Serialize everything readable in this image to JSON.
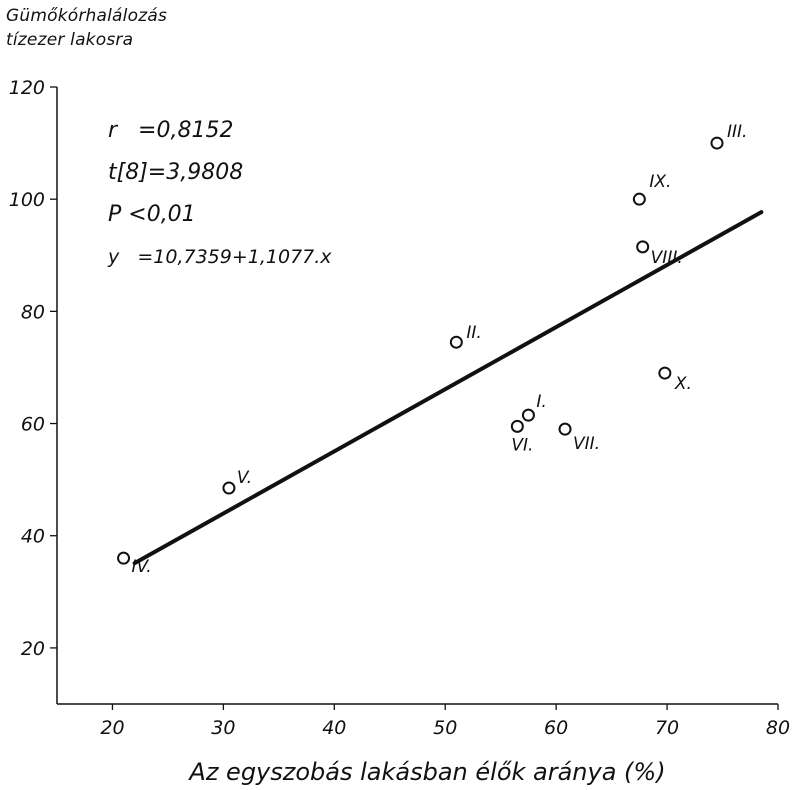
{
  "chart_data": {
    "type": "scatter",
    "ylabel_line1": "Gümőkórhalálozás",
    "ylabel_line2": "tízezer lakosra",
    "xlabel": "Az egyszobás lakásban élők aránya (%)",
    "xlim": [
      15,
      80
    ],
    "ylim": [
      10,
      120
    ],
    "xticks": [
      20,
      30,
      40,
      50,
      60,
      70,
      80
    ],
    "yticks": [
      20,
      40,
      60,
      80,
      100,
      120
    ],
    "points": [
      {
        "label": "I.",
        "x": 57.5,
        "y": 61.5
      },
      {
        "label": "II.",
        "x": 51,
        "y": 74.5
      },
      {
        "label": "III.",
        "x": 74.5,
        "y": 110
      },
      {
        "label": "IV.",
        "x": 21,
        "y": 36
      },
      {
        "label": "V.",
        "x": 30.5,
        "y": 48.5
      },
      {
        "label": "VI.",
        "x": 56.5,
        "y": 59.5
      },
      {
        "label": "VII.",
        "x": 60.8,
        "y": 59
      },
      {
        "label": "VIII.",
        "x": 67.8,
        "y": 91.5
      },
      {
        "label": "IX.",
        "x": 67.5,
        "y": 100
      },
      {
        "label": "X.",
        "x": 69.8,
        "y": 69
      }
    ],
    "regression": {
      "intercept": 10.7359,
      "slope": 1.1077,
      "x_range": [
        22,
        78.5
      ]
    },
    "stats": {
      "r": "r   =0,8152",
      "t": "t[8]=3,9808",
      "p": "P <0,01",
      "y": "y   =10,7359+1,1077.x"
    }
  }
}
